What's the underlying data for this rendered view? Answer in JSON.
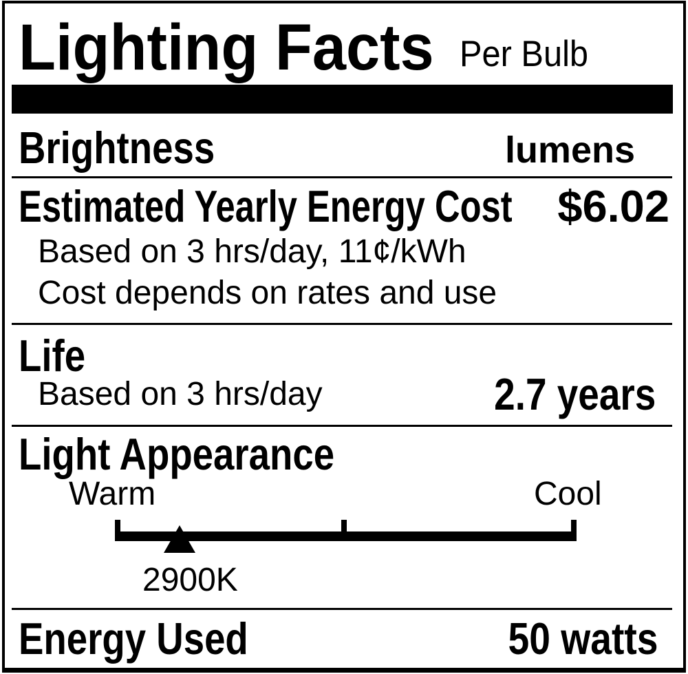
{
  "colors": {
    "ink": "#000000",
    "background": "#ffffff"
  },
  "label": {
    "title": "Lighting Facts",
    "subtitle": "Per Bulb",
    "brightness": {
      "name": "Brightness",
      "unit": "lumens"
    },
    "energy_cost": {
      "name": "Estimated Yearly Energy Cost",
      "value": "$6.02",
      "basis": "Based on 3 hrs/day, 11¢/kWh",
      "disclaimer": "Cost depends on rates and use"
    },
    "life": {
      "name": "Life",
      "basis": "Based on 3 hrs/day",
      "value": "2.7 years"
    },
    "light_appearance": {
      "name": "Light Appearance",
      "scale_left_label": "Warm",
      "scale_right_label": "Cool",
      "color_temperature": "2900K",
      "marker_position_pct": 14
    },
    "energy_used": {
      "name": "Energy Used",
      "value": "50 watts"
    }
  }
}
